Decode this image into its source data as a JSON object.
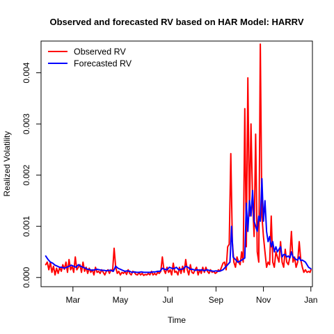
{
  "chart_data": {
    "type": "line",
    "title": "Observed and forecasted RV based on HAR Model: HARRV",
    "xlabel": "Time",
    "ylabel": "Realized Volatility",
    "legend_position": "top-left",
    "x_ticks": [
      {
        "label": "Mar",
        "t": 35
      },
      {
        "label": "May",
        "t": 96
      },
      {
        "label": "Jul",
        "t": 157
      },
      {
        "label": "Sep",
        "t": 219
      },
      {
        "label": "Nov",
        "t": 280
      },
      {
        "label": "Jan",
        "t": 341
      }
    ],
    "xlim": [
      -6,
      343
    ],
    "y_ticks": [
      {
        "label": "0.000",
        "v": 0.0
      },
      {
        "label": "0.001",
        "v": 0.001
      },
      {
        "label": "0.002",
        "v": 0.002
      },
      {
        "label": "0.003",
        "v": 0.003
      },
      {
        "label": "0.004",
        "v": 0.004
      }
    ],
    "ylim": [
      -0.00018,
      0.00462
    ],
    "series": [
      {
        "name": "Observed RV",
        "color": "#ff0000",
        "points": [
          [
            0,
            0.00025
          ],
          [
            2,
            0.0003
          ],
          [
            4,
            0.00015
          ],
          [
            6,
            0.0003
          ],
          [
            8,
            0.0001
          ],
          [
            10,
            0.00022
          ],
          [
            12,
            5e-05
          ],
          [
            14,
            0.00018
          ],
          [
            16,
            8e-05
          ],
          [
            18,
            0.0002
          ],
          [
            20,
            0.00012
          ],
          [
            22,
            0.00025
          ],
          [
            24,
            0.00016
          ],
          [
            26,
            0.0003
          ],
          [
            28,
            0.0001
          ],
          [
            30,
            0.00035
          ],
          [
            32,
            0.00015
          ],
          [
            34,
            0.00022
          ],
          [
            36,
            0.0001
          ],
          [
            38,
            0.0004
          ],
          [
            40,
            0.00015
          ],
          [
            42,
            0.0002
          ],
          [
            44,
            0.00025
          ],
          [
            46,
            0.0001
          ],
          [
            48,
            0.0003
          ],
          [
            50,
            0.00012
          ],
          [
            52,
            0.0002
          ],
          [
            54,
            8e-05
          ],
          [
            56,
            0.00018
          ],
          [
            58,
            0.0001
          ],
          [
            60,
            0.00015
          ],
          [
            62,
            5e-05
          ],
          [
            64,
            0.0002
          ],
          [
            66,
            0.0001
          ],
          [
            68,
            0.00012
          ],
          [
            70,
            8e-05
          ],
          [
            72,
            0.00015
          ],
          [
            74,
            0.0001
          ],
          [
            76,
            5e-05
          ],
          [
            78,
            0.00012
          ],
          [
            80,
            0.00015
          ],
          [
            82,
            8e-05
          ],
          [
            84,
            0.00015
          ],
          [
            86,
            0.00012
          ],
          [
            88,
            0.00057
          ],
          [
            90,
            0.0002
          ],
          [
            92,
            8e-05
          ],
          [
            94,
            0.00012
          ],
          [
            96,
            5e-05
          ],
          [
            98,
            0.0001
          ],
          [
            100,
            8e-05
          ],
          [
            102,
            0.00012
          ],
          [
            104,
            6e-05
          ],
          [
            106,
            0.00015
          ],
          [
            108,
            8e-05
          ],
          [
            110,
            5e-05
          ],
          [
            112,
            0.00012
          ],
          [
            114,
            0.0001
          ],
          [
            116,
            6e-05
          ],
          [
            118,
            5e-05
          ],
          [
            120,
            0.0001
          ],
          [
            122,
            5e-05
          ],
          [
            124,
            8e-05
          ],
          [
            126,
            4e-05
          ],
          [
            128,
            6e-05
          ],
          [
            130,
            5e-05
          ],
          [
            132,
            8e-05
          ],
          [
            134,
            5e-05
          ],
          [
            136,
            0.00012
          ],
          [
            138,
            5e-05
          ],
          [
            140,
            8e-05
          ],
          [
            142,
            5e-05
          ],
          [
            144,
            0.0001
          ],
          [
            146,
            8e-05
          ],
          [
            148,
            0.00012
          ],
          [
            150,
            0.0004
          ],
          [
            152,
            0.00015
          ],
          [
            154,
            8e-05
          ],
          [
            156,
            0.0002
          ],
          [
            158,
            0.0001
          ],
          [
            160,
            0.00015
          ],
          [
            162,
            5e-05
          ],
          [
            164,
            0.00028
          ],
          [
            166,
            0.0001
          ],
          [
            168,
            0.00012
          ],
          [
            170,
            5e-05
          ],
          [
            172,
            0.0002
          ],
          [
            174,
            8e-05
          ],
          [
            176,
            0.00022
          ],
          [
            178,
            0.0001
          ],
          [
            180,
            0.00035
          ],
          [
            182,
            0.00015
          ],
          [
            184,
            5e-05
          ],
          [
            186,
            0.00025
          ],
          [
            188,
            0.0001
          ],
          [
            190,
            8e-05
          ],
          [
            192,
            0.00015
          ],
          [
            194,
            0.0002
          ],
          [
            196,
            5e-05
          ],
          [
            198,
            0.00015
          ],
          [
            200,
            8e-05
          ],
          [
            202,
            0.0002
          ],
          [
            204,
            0.0001
          ],
          [
            206,
            0.0002
          ],
          [
            208,
            0.00012
          ],
          [
            210,
            8e-05
          ],
          [
            212,
            0.00015
          ],
          [
            214,
            0.0001
          ],
          [
            216,
            0.00012
          ],
          [
            218,
            8e-05
          ],
          [
            220,
            0.0001
          ],
          [
            222,
            0.00015
          ],
          [
            224,
            0.00012
          ],
          [
            226,
            0.0002
          ],
          [
            228,
            0.00028
          ],
          [
            230,
            0.0003
          ],
          [
            232,
            0.00015
          ],
          [
            234,
            0.0006
          ],
          [
            236,
            0.00065
          ],
          [
            238,
            0.00242
          ],
          [
            240,
            0.0007
          ],
          [
            242,
            0.0003
          ],
          [
            244,
            0.0002
          ],
          [
            246,
            0.0004
          ],
          [
            248,
            0.0003
          ],
          [
            250,
            0.00025
          ],
          [
            252,
            0.0005
          ],
          [
            254,
            0.0003
          ],
          [
            256,
            0.0033
          ],
          [
            258,
            0.0006
          ],
          [
            260,
            0.0039
          ],
          [
            262,
            0.0012
          ],
          [
            264,
            0.003
          ],
          [
            266,
            0.0015
          ],
          [
            268,
            0.0008
          ],
          [
            270,
            0.0028
          ],
          [
            272,
            0.0005
          ],
          [
            274,
            0.0003
          ],
          [
            276,
            0.00456
          ],
          [
            278,
            0.0012
          ],
          [
            280,
            0.0008
          ],
          [
            282,
            0.0005
          ],
          [
            284,
            0.0002
          ],
          [
            286,
            0.0003
          ],
          [
            288,
            0.00025
          ],
          [
            290,
            0.0012
          ],
          [
            292,
            0.0003
          ],
          [
            294,
            0.0002
          ],
          [
            296,
            0.0005
          ],
          [
            298,
            0.0004
          ],
          [
            300,
            0.0003
          ],
          [
            302,
            0.0007
          ],
          [
            304,
            0.0003
          ],
          [
            306,
            0.0002
          ],
          [
            308,
            0.00055
          ],
          [
            310,
            0.0003
          ],
          [
            312,
            0.00025
          ],
          [
            314,
            0.0004
          ],
          [
            316,
            0.0009
          ],
          [
            318,
            0.0003
          ],
          [
            320,
            0.0004
          ],
          [
            322,
            0.0002
          ],
          [
            324,
            0.0003
          ],
          [
            326,
            0.0007
          ],
          [
            328,
            0.00035
          ],
          [
            330,
            0.0002
          ],
          [
            332,
            0.0001
          ],
          [
            334,
            0.00015
          ],
          [
            336,
            0.0001
          ],
          [
            338,
            0.00012
          ],
          [
            340,
            0.0001
          ],
          [
            341,
            0.00015
          ]
        ]
      },
      {
        "name": "Forecasted RV",
        "color": "#0000ff",
        "points": [
          [
            0,
            0.00042
          ],
          [
            3,
            0.00035
          ],
          [
            6,
            0.0003
          ],
          [
            9,
            0.00028
          ],
          [
            12,
            0.00024
          ],
          [
            15,
            0.00022
          ],
          [
            18,
            0.0002
          ],
          [
            21,
            0.0002
          ],
          [
            24,
            0.00018
          ],
          [
            27,
            0.0002
          ],
          [
            30,
            0.00022
          ],
          [
            33,
            0.00024
          ],
          [
            36,
            0.00022
          ],
          [
            39,
            0.0002
          ],
          [
            42,
            0.00025
          ],
          [
            45,
            0.00022
          ],
          [
            48,
            0.0002
          ],
          [
            51,
            0.00018
          ],
          [
            54,
            0.00016
          ],
          [
            57,
            0.00015
          ],
          [
            60,
            0.00014
          ],
          [
            63,
            0.00015
          ],
          [
            66,
            0.00016
          ],
          [
            69,
            0.00015
          ],
          [
            72,
            0.00014
          ],
          [
            75,
            0.00014
          ],
          [
            78,
            0.00013
          ],
          [
            81,
            0.00014
          ],
          [
            84,
            0.00014
          ],
          [
            87,
            0.00012
          ],
          [
            90,
            0.00022
          ],
          [
            93,
            0.00018
          ],
          [
            96,
            0.00016
          ],
          [
            99,
            0.00014
          ],
          [
            102,
            0.00012
          ],
          [
            105,
            0.00013
          ],
          [
            108,
            0.00012
          ],
          [
            111,
            0.0001
          ],
          [
            114,
            0.00011
          ],
          [
            117,
            0.0001
          ],
          [
            120,
            0.0001
          ],
          [
            123,
            0.00011
          ],
          [
            126,
            0.0001
          ],
          [
            129,
            0.0001
          ],
          [
            132,
            0.0001
          ],
          [
            135,
            0.0001
          ],
          [
            138,
            0.00011
          ],
          [
            141,
            0.00011
          ],
          [
            144,
            0.00012
          ],
          [
            147,
            0.00012
          ],
          [
            150,
            0.00018
          ],
          [
            153,
            0.00016
          ],
          [
            156,
            0.00015
          ],
          [
            159,
            0.0002
          ],
          [
            162,
            0.00018
          ],
          [
            165,
            0.00017
          ],
          [
            168,
            0.0002
          ],
          [
            171,
            0.00015
          ],
          [
            174,
            0.00016
          ],
          [
            177,
            0.00017
          ],
          [
            180,
            0.00022
          ],
          [
            183,
            0.0002
          ],
          [
            186,
            0.00016
          ],
          [
            189,
            0.00016
          ],
          [
            192,
            0.00014
          ],
          [
            195,
            0.00015
          ],
          [
            198,
            0.00014
          ],
          [
            201,
            0.00015
          ],
          [
            204,
            0.00013
          ],
          [
            207,
            0.00015
          ],
          [
            210,
            0.00014
          ],
          [
            213,
            0.00013
          ],
          [
            216,
            0.00012
          ],
          [
            219,
            0.00013
          ],
          [
            222,
            0.00012
          ],
          [
            225,
            0.00013
          ],
          [
            228,
            0.00015
          ],
          [
            231,
            0.0002
          ],
          [
            234,
            0.00025
          ],
          [
            237,
            0.0003
          ],
          [
            239,
            0.001
          ],
          [
            241,
            0.0004
          ],
          [
            244,
            0.00035
          ],
          [
            247,
            0.0003
          ],
          [
            250,
            0.00032
          ],
          [
            253,
            0.00035
          ],
          [
            256,
            0.00038
          ],
          [
            258,
            0.00145
          ],
          [
            260,
            0.0009
          ],
          [
            262,
            0.0015
          ],
          [
            264,
            0.0012
          ],
          [
            266,
            0.0017
          ],
          [
            268,
            0.0011
          ],
          [
            270,
            0.001
          ],
          [
            272,
            0.0009
          ],
          [
            274,
            0.0012
          ],
          [
            276,
            0.0011
          ],
          [
            278,
            0.00193
          ],
          [
            280,
            0.0011
          ],
          [
            282,
            0.0015
          ],
          [
            284,
            0.0009
          ],
          [
            286,
            0.0007
          ],
          [
            288,
            0.0008
          ],
          [
            290,
            0.0006
          ],
          [
            292,
            0.0007
          ],
          [
            294,
            0.0005
          ],
          [
            296,
            0.0006
          ],
          [
            298,
            0.0005
          ],
          [
            300,
            0.00055
          ],
          [
            302,
            0.0006
          ],
          [
            304,
            0.0004
          ],
          [
            306,
            0.00045
          ],
          [
            308,
            0.00045
          ],
          [
            310,
            0.0004
          ],
          [
            312,
            0.00042
          ],
          [
            314,
            0.00038
          ],
          [
            316,
            0.0005
          ],
          [
            318,
            0.0004
          ],
          [
            320,
            0.00038
          ],
          [
            322,
            0.00035
          ],
          [
            324,
            0.00034
          ],
          [
            326,
            0.0004
          ],
          [
            328,
            0.00033
          ],
          [
            330,
            0.00034
          ],
          [
            332,
            0.00032
          ],
          [
            334,
            0.0003
          ],
          [
            336,
            0.00025
          ],
          [
            338,
            0.0002
          ],
          [
            340,
            0.00018
          ],
          [
            341,
            0.00017
          ]
        ]
      }
    ]
  }
}
